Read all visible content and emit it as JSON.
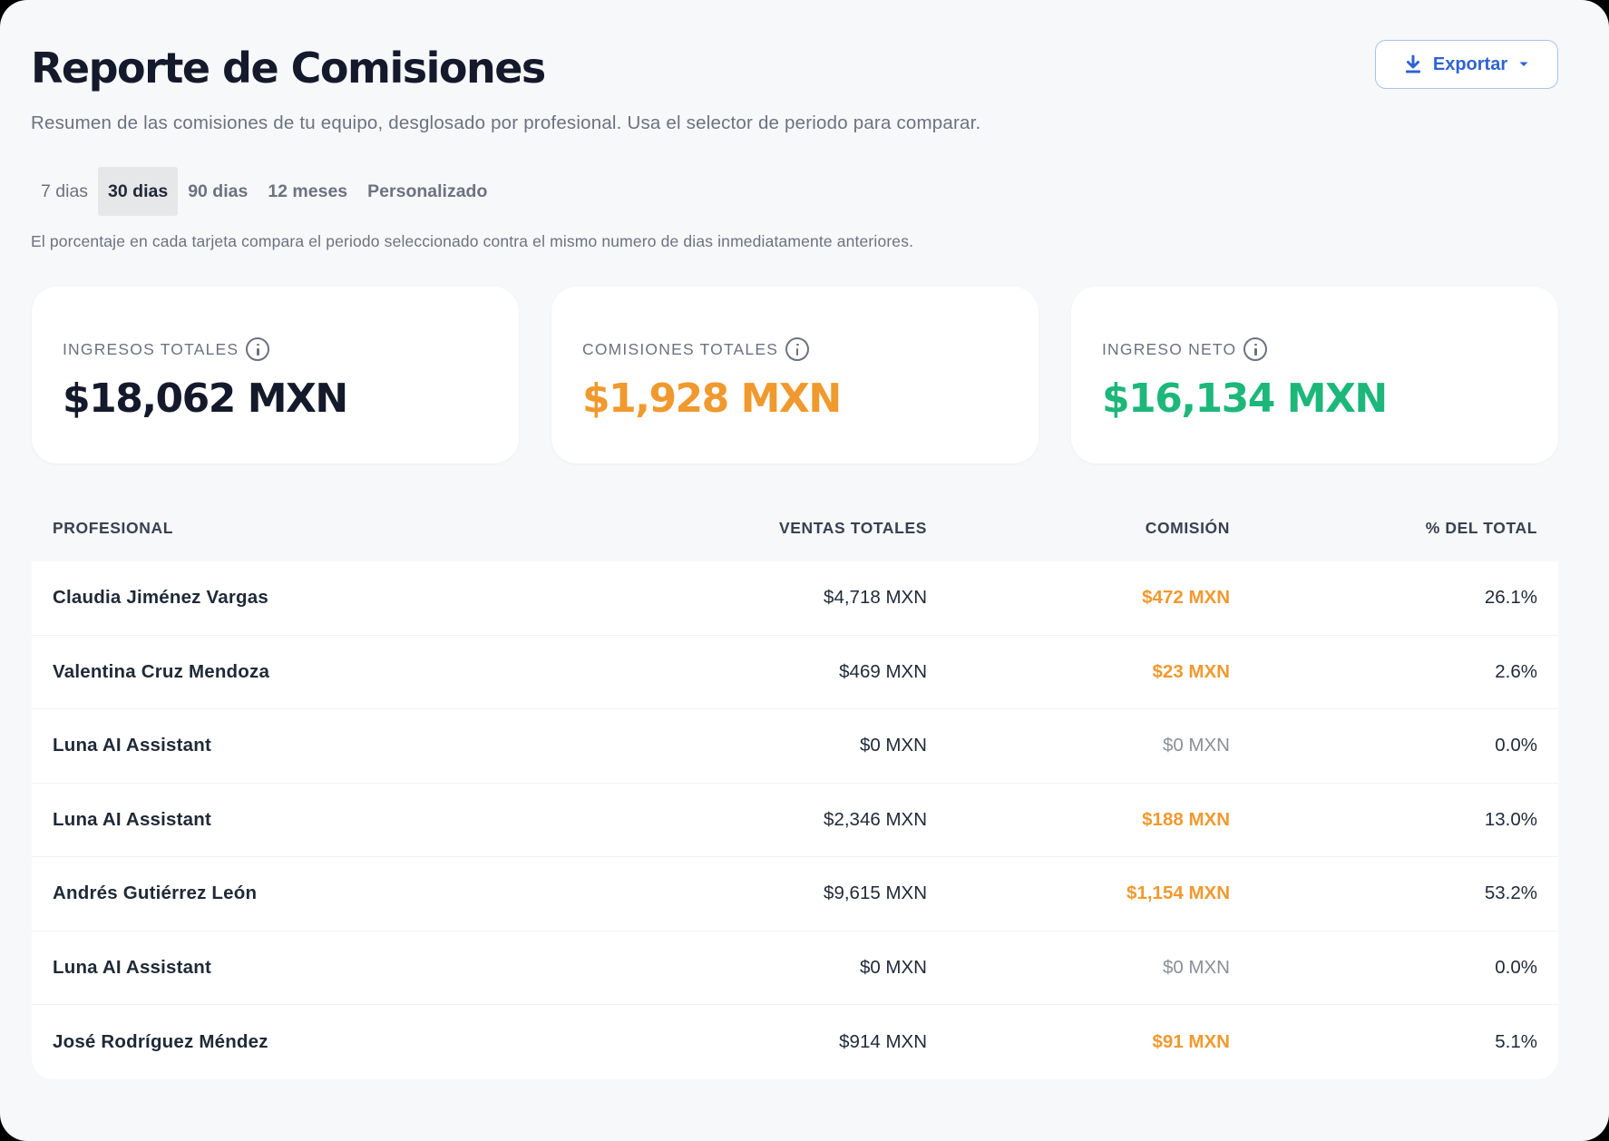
{
  "header": {
    "title": "Reporte de Comisiones",
    "subtitle": "Resumen de las comisiones de tu equipo, desglosado por profesional. Usa el selector de periodo para comparar.",
    "export_label": "Exportar"
  },
  "tabs": [
    {
      "label": "7 dias",
      "active": false
    },
    {
      "label": "30 dias",
      "active": true
    },
    {
      "label": "90 dias",
      "active": false
    },
    {
      "label": "12 meses",
      "active": false
    },
    {
      "label": "Personalizado",
      "active": false
    }
  ],
  "note": "El porcentaje en cada tarjeta compara el periodo seleccionado contra el mismo numero de dias inmediatamente anteriores.",
  "cards": [
    {
      "label": "INGRESOS TOTALES",
      "value": "$18,062 MXN",
      "color": "#141a2b"
    },
    {
      "label": "COMISIONES TOTALES",
      "value": "$1,928 MXN",
      "color": "#f0992e"
    },
    {
      "label": "INGRESO NETO",
      "value": "$16,134 MXN",
      "color": "#1db77a"
    }
  ],
  "table": {
    "headers": [
      "PROFESIONAL",
      "VENTAS TOTALES",
      "COMISIÓN",
      "% DEL TOTAL"
    ],
    "rows": [
      {
        "name": "Claudia Jiménez Vargas",
        "sales": "$4,718 MXN",
        "commission": "$472 MXN",
        "pct": "26.1%"
      },
      {
        "name": "Valentina Cruz Mendoza",
        "sales": "$469 MXN",
        "commission": "$23 MXN",
        "pct": "2.6%"
      },
      {
        "name": "Luna AI Assistant",
        "sales": "$0 MXN",
        "commission": "$0 MXN",
        "pct": "0.0%"
      },
      {
        "name": "Luna AI Assistant",
        "sales": "$2,346 MXN",
        "commission": "$188 MXN",
        "pct": "13.0%"
      },
      {
        "name": "Andrés Gutiérrez León",
        "sales": "$9,615 MXN",
        "commission": "$1,154 MXN",
        "pct": "53.2%"
      },
      {
        "name": "Luna AI Assistant",
        "sales": "$0 MXN",
        "commission": "$0 MXN",
        "pct": "0.0%"
      },
      {
        "name": "José Rodríguez Méndez",
        "sales": "$914 MXN",
        "commission": "$91 MXN",
        "pct": "5.1%"
      }
    ]
  },
  "icons": {
    "export": "download-icon",
    "dropdown": "caret-down-icon",
    "info": "info-icon"
  }
}
